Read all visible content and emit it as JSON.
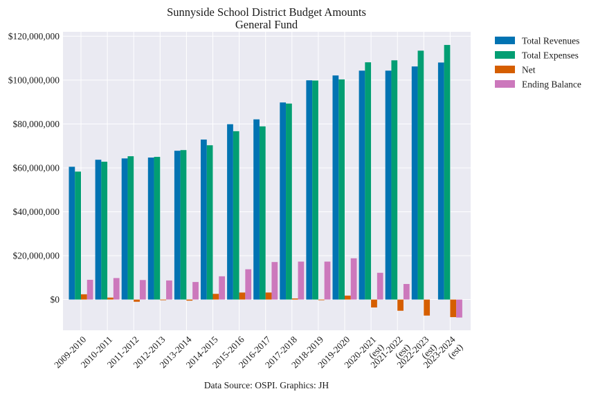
{
  "chart_data": {
    "type": "bar",
    "title": "Sunnyside School District Budget Amounts",
    "subtitle": "General Fund",
    "source_note": "Data Source: OSPI. Graphics: JH",
    "xlabel": "",
    "ylabel": "",
    "ylim": [
      -14000000,
      122000000
    ],
    "yticks": [
      0,
      20000000,
      40000000,
      60000000,
      80000000,
      100000000,
      120000000
    ],
    "ytick_labels": [
      "$0",
      "$20,000,000",
      "$40,000,000",
      "$60,000,000",
      "$80,000,000",
      "$100,000,000",
      "$120,000,000"
    ],
    "grid": true,
    "legend_position": "outside-top-right",
    "categories": [
      "2009-2010",
      "2010-2011",
      "2011-2012",
      "2012-2013",
      "2013-2014",
      "2014-2015",
      "2015-2016",
      "2016-2017",
      "2017-2018",
      "2018-2019",
      "2019-2020",
      "2020-2021\n(est)",
      "2021-2022\n(est)",
      "2022-2023\n(est)",
      "2023-2024\n(est)"
    ],
    "series": [
      {
        "name": "Total Revenues",
        "color": "#0173b2",
        "values": [
          60500000,
          63700000,
          64300000,
          64700000,
          67800000,
          72900000,
          79900000,
          82100000,
          89800000,
          99900000,
          102100000,
          104300000,
          104300000,
          106200000,
          108000000
        ]
      },
      {
        "name": "Total Expenses",
        "color": "#029e73",
        "values": [
          58300000,
          62800000,
          65300000,
          65000000,
          68100000,
          70300000,
          76700000,
          78900000,
          89300000,
          99800000,
          100300000,
          108100000,
          109000000,
          113400000,
          116000000
        ]
      },
      {
        "name": "Net",
        "color": "#d55e00",
        "values": [
          2400000,
          900000,
          -1000000,
          -300000,
          -500000,
          2600000,
          3200000,
          3200000,
          500000,
          -300000,
          1800000,
          -3600000,
          -5100000,
          -7300000,
          -8000000
        ]
      },
      {
        "name": "Ending Balance",
        "color": "#cc78bc",
        "values": [
          9000000,
          9800000,
          8900000,
          8700000,
          8000000,
          10600000,
          13800000,
          17100000,
          17300000,
          17300000,
          18800000,
          12200000,
          7100000,
          0,
          -8200000
        ]
      }
    ]
  }
}
